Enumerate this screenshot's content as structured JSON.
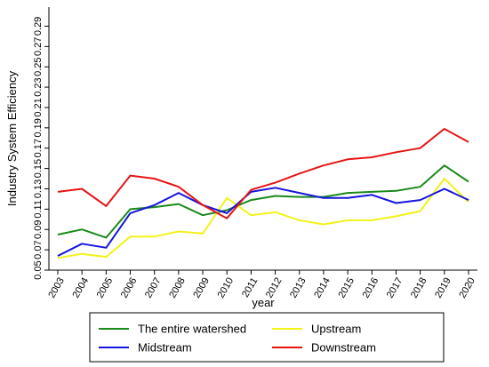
{
  "chart_data": {
    "type": "line",
    "title": "",
    "xlabel": "year",
    "ylabel": "Industry System Efficiency",
    "x": [
      "2003",
      "2004",
      "2005",
      "2006",
      "2007",
      "2008",
      "2009",
      "2010",
      "2011",
      "2012",
      "2013",
      "2014",
      "2015",
      "2016",
      "2017",
      "2018",
      "2019",
      "2020"
    ],
    "yticks": [
      "0.05",
      "0.07",
      "0.09",
      "0.11",
      "0.13",
      "0.15",
      "0.17",
      "0.19",
      "0.21",
      "0.23",
      "0.25",
      "0.27",
      "0.29"
    ],
    "ylim": [
      0.05,
      0.3
    ],
    "grid": false,
    "legend_position": "bottom",
    "series": [
      {
        "name": "The entire watershed",
        "color": "#1a8a1a",
        "values": [
          0.085,
          0.09,
          0.082,
          0.11,
          0.112,
          0.115,
          0.104,
          0.109,
          0.119,
          0.123,
          0.122,
          0.122,
          0.126,
          0.127,
          0.128,
          0.132,
          0.153,
          0.137
        ]
      },
      {
        "name": "Upstream",
        "color": "#f2f21a",
        "values": [
          0.062,
          0.066,
          0.063,
          0.083,
          0.083,
          0.088,
          0.086,
          0.121,
          0.104,
          0.107,
          0.099,
          0.095,
          0.099,
          0.099,
          0.103,
          0.108,
          0.14,
          0.117
        ]
      },
      {
        "name": "Midstream",
        "color": "#1515e0",
        "values": [
          0.064,
          0.076,
          0.072,
          0.106,
          0.114,
          0.126,
          0.114,
          0.106,
          0.127,
          0.131,
          0.126,
          0.121,
          0.121,
          0.124,
          0.116,
          0.119,
          0.13,
          0.119
        ]
      },
      {
        "name": "Downstream",
        "color": "#e81414",
        "values": [
          0.127,
          0.13,
          0.113,
          0.143,
          0.14,
          0.132,
          0.114,
          0.101,
          0.129,
          0.136,
          0.145,
          0.153,
          0.159,
          0.161,
          0.166,
          0.17,
          0.189,
          0.176
        ]
      }
    ]
  }
}
